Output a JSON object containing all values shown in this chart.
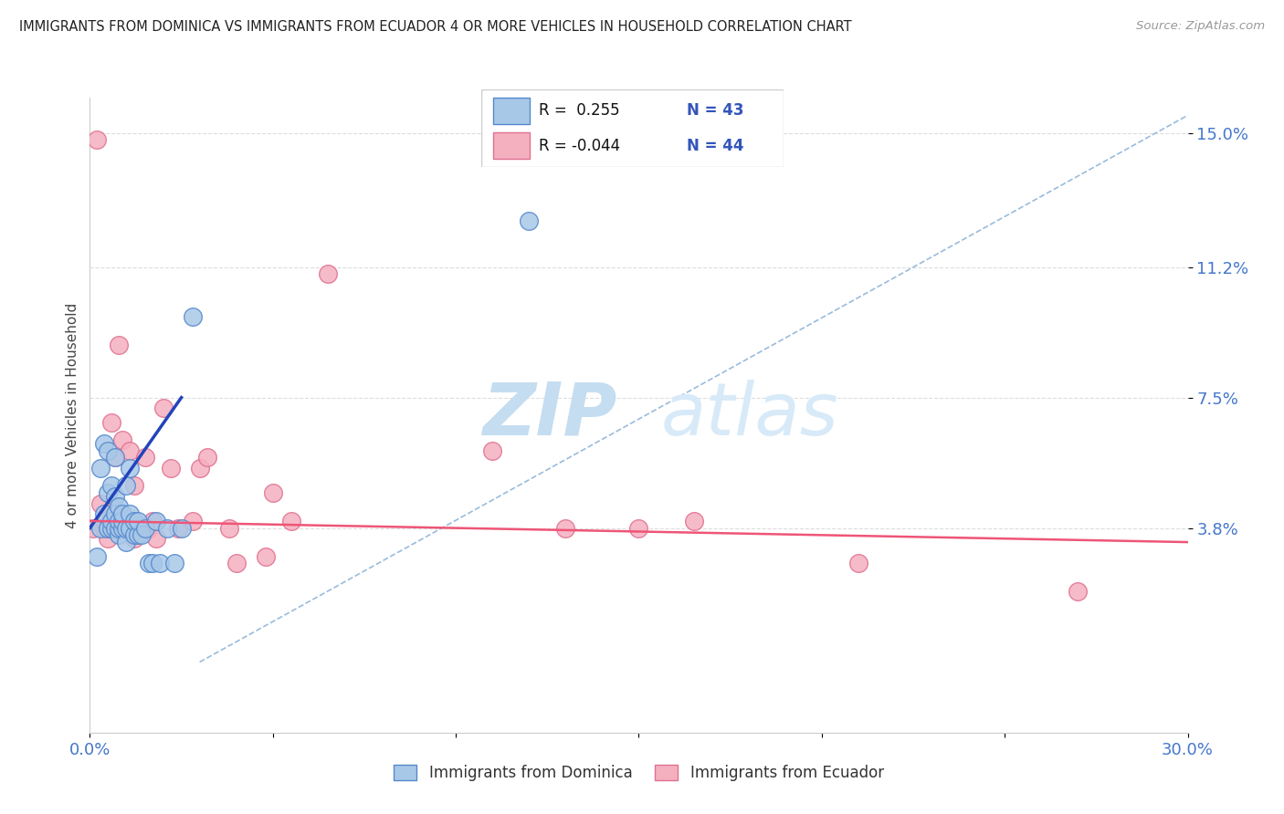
{
  "title": "IMMIGRANTS FROM DOMINICA VS IMMIGRANTS FROM ECUADOR 4 OR MORE VEHICLES IN HOUSEHOLD CORRELATION CHART",
  "source": "Source: ZipAtlas.com",
  "ylabel": "4 or more Vehicles in Household",
  "xlim": [
    0.0,
    0.3
  ],
  "ylim": [
    -0.02,
    0.16
  ],
  "yticks": [
    0.038,
    0.075,
    0.112,
    0.15
  ],
  "ytick_labels": [
    "3.8%",
    "7.5%",
    "11.2%",
    "15.0%"
  ],
  "xticks": [
    0.0,
    0.05,
    0.1,
    0.15,
    0.2,
    0.25,
    0.3
  ],
  "dominica_color": "#a8c8e8",
  "ecuador_color": "#f5b0c0",
  "dominica_edge": "#5588cc",
  "ecuador_edge": "#e07090",
  "blue_line_color": "#2244bb",
  "pink_line_color": "#ee5577",
  "dashed_line_color": "#99bbdd",
  "watermark_zip": "ZIP",
  "watermark_atlas": "atlas",
  "background_color": "#ffffff",
  "grid_color": "#dddddd",
  "dominica_x": [
    0.002,
    0.003,
    0.003,
    0.004,
    0.004,
    0.005,
    0.005,
    0.005,
    0.006,
    0.006,
    0.006,
    0.007,
    0.007,
    0.007,
    0.007,
    0.008,
    0.008,
    0.008,
    0.008,
    0.009,
    0.009,
    0.009,
    0.01,
    0.01,
    0.01,
    0.011,
    0.011,
    0.011,
    0.012,
    0.012,
    0.013,
    0.013,
    0.014,
    0.015,
    0.016,
    0.017,
    0.018,
    0.019,
    0.021,
    0.023,
    0.025,
    0.028,
    0.12
  ],
  "dominica_y": [
    0.03,
    0.038,
    0.055,
    0.042,
    0.062,
    0.038,
    0.048,
    0.06,
    0.038,
    0.04,
    0.05,
    0.038,
    0.042,
    0.047,
    0.058,
    0.036,
    0.038,
    0.04,
    0.044,
    0.038,
    0.04,
    0.042,
    0.034,
    0.038,
    0.05,
    0.038,
    0.042,
    0.055,
    0.036,
    0.04,
    0.036,
    0.04,
    0.036,
    0.038,
    0.028,
    0.028,
    0.04,
    0.028,
    0.038,
    0.028,
    0.038,
    0.098,
    0.125
  ],
  "ecuador_x": [
    0.001,
    0.002,
    0.003,
    0.004,
    0.004,
    0.005,
    0.005,
    0.006,
    0.006,
    0.007,
    0.007,
    0.008,
    0.008,
    0.009,
    0.009,
    0.01,
    0.011,
    0.011,
    0.012,
    0.012,
    0.013,
    0.014,
    0.015,
    0.016,
    0.017,
    0.018,
    0.02,
    0.022,
    0.024,
    0.028,
    0.03,
    0.032,
    0.038,
    0.04,
    0.048,
    0.05,
    0.055,
    0.065,
    0.11,
    0.13,
    0.15,
    0.165,
    0.21,
    0.27
  ],
  "ecuador_y": [
    0.038,
    0.148,
    0.045,
    0.038,
    0.04,
    0.035,
    0.038,
    0.038,
    0.068,
    0.038,
    0.058,
    0.038,
    0.09,
    0.038,
    0.063,
    0.038,
    0.038,
    0.06,
    0.035,
    0.05,
    0.038,
    0.038,
    0.058,
    0.038,
    0.04,
    0.035,
    0.072,
    0.055,
    0.038,
    0.04,
    0.055,
    0.058,
    0.038,
    0.028,
    0.03,
    0.048,
    0.04,
    0.11,
    0.06,
    0.038,
    0.038,
    0.04,
    0.028,
    0.02
  ],
  "blue_line_x": [
    0.0,
    0.025
  ],
  "blue_line_y": [
    0.038,
    0.075
  ],
  "pink_line_x": [
    0.0,
    0.3
  ],
  "pink_line_y": [
    0.04,
    0.034
  ]
}
